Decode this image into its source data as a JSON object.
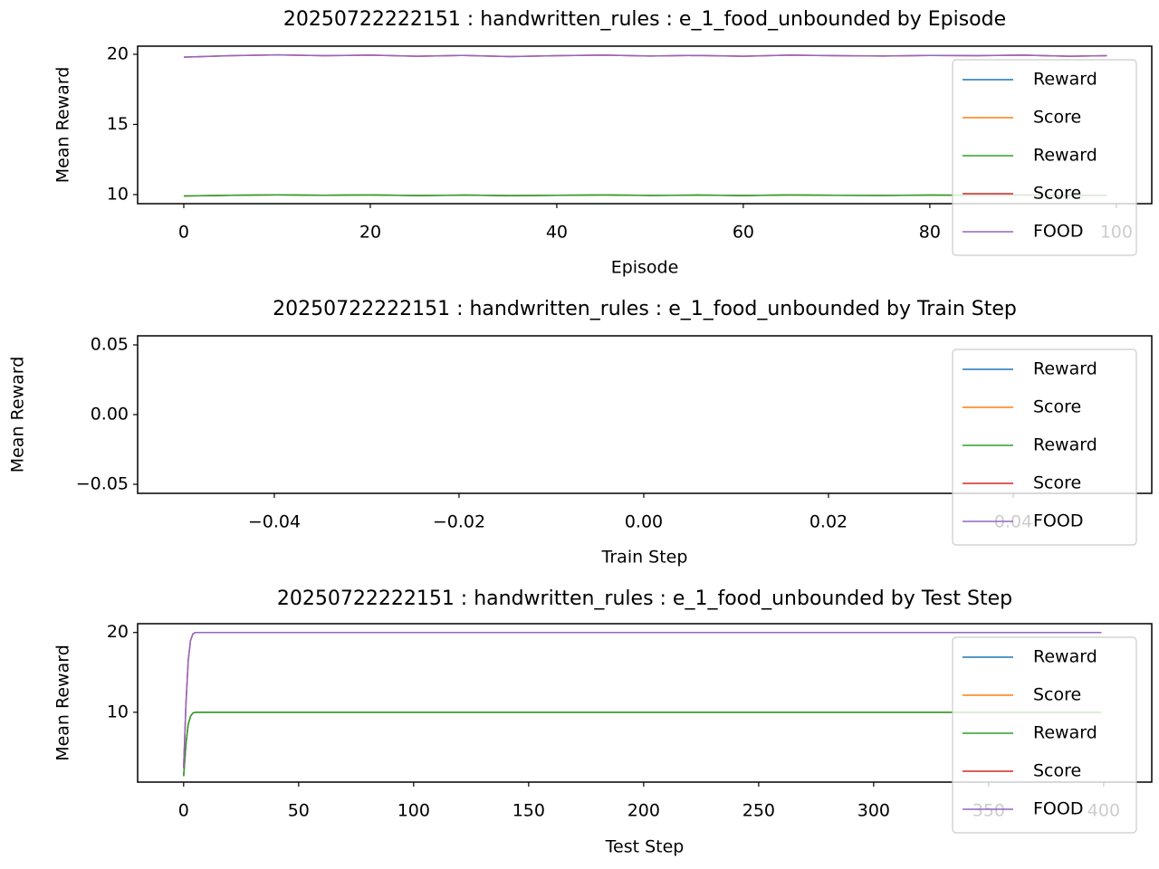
{
  "chart_data": [
    {
      "type": "line",
      "title": "20250722222151 : handwritten_rules : e_1_food_unbounded by Episode",
      "x_label": "Episode",
      "y_label": "Mean Reward",
      "x": [
        0,
        5,
        10,
        15,
        20,
        25,
        30,
        35,
        40,
        45,
        50,
        55,
        60,
        65,
        70,
        75,
        80,
        85,
        90,
        95,
        99
      ],
      "series": [
        {
          "name": "Reward",
          "color": "#1f77b4",
          "values": [
            9.9,
            9.95,
            9.98,
            9.95,
            9.97,
            9.93,
            9.96,
            9.92,
            9.95,
            9.97,
            9.94,
            9.96,
            9.93,
            9.97,
            9.95,
            9.94,
            9.96,
            9.95,
            9.97,
            9.93,
            9.95
          ]
        },
        {
          "name": "Score",
          "color": "#ff7f0e",
          "values": [
            9.9,
            9.95,
            9.98,
            9.95,
            9.97,
            9.93,
            9.96,
            9.92,
            9.95,
            9.97,
            9.94,
            9.96,
            9.93,
            9.97,
            9.95,
            9.94,
            9.96,
            9.95,
            9.97,
            9.93,
            9.95
          ]
        },
        {
          "name": "Reward",
          "color": "#2ca02c",
          "values": [
            9.9,
            9.95,
            9.98,
            9.95,
            9.97,
            9.93,
            9.96,
            9.92,
            9.95,
            9.97,
            9.94,
            9.96,
            9.93,
            9.97,
            9.95,
            9.94,
            9.96,
            9.95,
            9.97,
            9.93,
            9.95
          ]
        },
        {
          "name": "Score",
          "color": "#d62728",
          "values": [
            19.8,
            19.9,
            19.96,
            19.9,
            19.94,
            19.86,
            19.92,
            19.84,
            19.9,
            19.94,
            19.88,
            19.92,
            19.86,
            19.94,
            19.9,
            19.88,
            19.92,
            19.9,
            19.94,
            19.86,
            19.9
          ]
        },
        {
          "name": "FOOD",
          "color": "#9467bd",
          "values": [
            19.8,
            19.9,
            19.96,
            19.9,
            19.94,
            19.86,
            19.92,
            19.84,
            19.9,
            19.94,
            19.88,
            19.92,
            19.86,
            19.94,
            19.9,
            19.88,
            19.92,
            19.9,
            19.94,
            19.86,
            19.9
          ]
        }
      ],
      "xlim": [
        -4.95,
        103.8
      ],
      "ylim": [
        9.35,
        20.58
      ],
      "xticks": [
        0,
        20,
        40,
        60,
        80,
        100
      ],
      "yticks": [
        10,
        15,
        20
      ],
      "legend": "upper right"
    },
    {
      "type": "line",
      "title": "20250722222151 : handwritten_rules : e_1_food_unbounded by Train Step",
      "x_label": "Train Step",
      "y_label": "Mean Reward",
      "x": [],
      "series": [
        {
          "name": "Reward",
          "color": "#1f77b4",
          "values": []
        },
        {
          "name": "Score",
          "color": "#ff7f0e",
          "values": []
        },
        {
          "name": "Reward",
          "color": "#2ca02c",
          "values": []
        },
        {
          "name": "Score",
          "color": "#d62728",
          "values": []
        },
        {
          "name": "FOOD",
          "color": "#9467bd",
          "values": []
        }
      ],
      "xlim": [
        -0.0548,
        0.055
      ],
      "ylim": [
        -0.0565,
        0.0565
      ],
      "xticks": [
        {
          "value": -0.04,
          "label": "−0.04"
        },
        {
          "value": -0.02,
          "label": "−0.02"
        },
        {
          "value": 0,
          "label": "0.00"
        },
        {
          "value": 0.02,
          "label": "0.02"
        },
        {
          "value": 0.04,
          "label": "0.04"
        }
      ],
      "yticks": [
        {
          "value": -0.05,
          "label": "−0.05"
        },
        {
          "value": 0,
          "label": "0.00"
        },
        {
          "value": 0.05,
          "label": "0.05"
        }
      ],
      "legend": "upper right"
    },
    {
      "type": "line",
      "title": "20250722222151 : handwritten_rules : e_1_food_unbounded by Test Step",
      "x_label": "Test Step",
      "y_label": "Mean Reward",
      "x": [
        0,
        1,
        2,
        3,
        4,
        5,
        6,
        10,
        50,
        100,
        150,
        200,
        250,
        300,
        350,
        399
      ],
      "series": [
        {
          "name": "Reward",
          "color": "#1f77b4",
          "values": [
            2,
            6,
            8.5,
            9.5,
            9.9,
            10,
            10,
            10,
            10,
            10,
            10,
            10,
            10,
            10,
            10,
            10
          ]
        },
        {
          "name": "Score",
          "color": "#ff7f0e",
          "values": [
            2,
            6,
            8.5,
            9.5,
            9.9,
            10,
            10,
            10,
            10,
            10,
            10,
            10,
            10,
            10,
            10,
            10
          ]
        },
        {
          "name": "Reward",
          "color": "#2ca02c",
          "values": [
            2,
            6,
            8.5,
            9.5,
            9.9,
            10,
            10,
            10,
            10,
            10,
            10,
            10,
            10,
            10,
            10,
            10
          ]
        },
        {
          "name": "Score",
          "color": "#d62728",
          "values": [
            3,
            11,
            16.5,
            19,
            19.8,
            20,
            20,
            20,
            20,
            20,
            20,
            20,
            20,
            20,
            20,
            20
          ]
        },
        {
          "name": "FOOD",
          "color": "#9467bd",
          "values": [
            3,
            11,
            16.5,
            19,
            19.8,
            20,
            20,
            20,
            20,
            20,
            20,
            20,
            20,
            20,
            20,
            20
          ]
        }
      ],
      "xlim": [
        -20,
        420.9
      ],
      "ylim": [
        1.25,
        21.1
      ],
      "xticks": [
        0,
        50,
        100,
        150,
        200,
        250,
        300,
        350,
        400
      ],
      "yticks": [
        10,
        20
      ],
      "legend": "upper right"
    }
  ]
}
